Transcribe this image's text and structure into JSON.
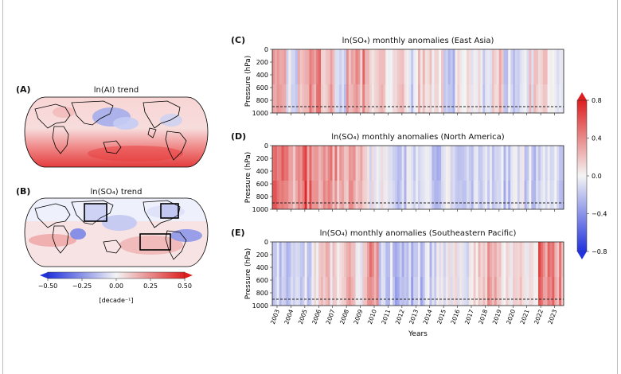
{
  "panel_a": {
    "label": "(A)",
    "title": "ln(AI) trend"
  },
  "panel_b": {
    "label": "(B)",
    "title": "ln(SO₄) trend"
  },
  "panel_c": {
    "label": "(C)",
    "title": "ln(SO₄) monthly anomalies (East Asia)"
  },
  "panel_d": {
    "label": "(D)",
    "title": "ln(SO₄) monthly anomalies (North America)"
  },
  "panel_e": {
    "label": "(E)",
    "title": "ln(SO₄) monthly anomalies (Southeastern Pacific)"
  },
  "colors": {
    "neg": "#2233dd",
    "mid": "#f4f4f4",
    "pos": "#dd1f1f",
    "land_outline": "#000000"
  },
  "chart_data": [
    {
      "type": "heatmap",
      "subtype": "map",
      "panel": "A",
      "title": "ln(AI) trend",
      "colorbar_shared_with": "B"
    },
    {
      "type": "heatmap",
      "subtype": "map",
      "panel": "B",
      "title": "ln(SO₄) trend",
      "colorbar": {
        "label": "[decade⁻¹]",
        "ticks": [
          "−0.50",
          "−0.25",
          "0.00",
          "0.25",
          "0.50"
        ],
        "range": [
          -0.5,
          0.5
        ],
        "extend": "both"
      }
    },
    {
      "type": "heatmap",
      "panel": "C",
      "title": "ln(SO₄) monthly anomalies (East Asia)",
      "ylabel": "Pressure (hPa)",
      "yticks": [
        "0",
        "200",
        "400",
        "600",
        "800",
        "1000"
      ],
      "ylim": [
        1000,
        0
      ],
      "reference_line_hPa": 900,
      "anomaly_pattern": [
        0.5,
        -0.2,
        0.3,
        0.6,
        0.2,
        -0.1,
        0.4,
        0.5,
        0.3,
        0.2,
        0.1,
        -0.1,
        0.2,
        0.1,
        -0.2,
        0.1,
        0.0,
        -0.1,
        0.2,
        -0.2,
        -0.1,
        0.1,
        0.2,
        0.0
      ]
    },
    {
      "type": "heatmap",
      "panel": "D",
      "title": "ln(SO₄) monthly anomalies (North America)",
      "ylabel": "Pressure (hPa)",
      "yticks": [
        "0",
        "200",
        "400",
        "600",
        "800",
        "1000"
      ],
      "ylim": [
        1000,
        0
      ],
      "reference_line_hPa": 900,
      "anomaly_pattern": [
        0.7,
        0.5,
        0.6,
        0.5,
        0.6,
        0.5,
        0.4,
        0.2,
        0.0,
        -0.1,
        -0.2,
        -0.1,
        -0.2,
        -0.2,
        -0.1,
        -0.2,
        -0.1,
        -0.2,
        -0.1,
        -0.2,
        -0.1,
        -0.2,
        -0.1,
        -0.1
      ]
    },
    {
      "type": "heatmap",
      "panel": "E",
      "title": "ln(SO₄) monthly anomalies (Southeastern Pacific)",
      "ylabel": "Pressure (hPa)",
      "xlabel": "Years",
      "yticks": [
        "0",
        "200",
        "400",
        "600",
        "800",
        "1000"
      ],
      "xticks": [
        "2003",
        "2004",
        "2005",
        "2006",
        "2007",
        "2008",
        "2009",
        "2010",
        "2011",
        "2012",
        "2013",
        "2014",
        "2015",
        "2016",
        "2017",
        "2018",
        "2019",
        "2020",
        "2021",
        "2022",
        "2023"
      ],
      "ylim": [
        1000,
        0
      ],
      "reference_line_hPa": 900,
      "anomaly_pattern": [
        -0.3,
        -0.3,
        -0.2,
        0.1,
        0.2,
        0.3,
        0.1,
        0.4,
        -0.2,
        -0.3,
        -0.3,
        -0.2,
        -0.1,
        0.0,
        -0.1,
        0.2,
        0.3,
        0.1,
        0.1,
        0.0,
        0.8,
        0.6
      ]
    },
    {
      "type": "colorbar",
      "panels": [
        "C",
        "D",
        "E"
      ],
      "ticks": [
        "0.8",
        "0.4",
        "0.0",
        "−0.4",
        "−0.8"
      ],
      "range": [
        -0.8,
        0.8
      ],
      "extend": "both"
    }
  ]
}
